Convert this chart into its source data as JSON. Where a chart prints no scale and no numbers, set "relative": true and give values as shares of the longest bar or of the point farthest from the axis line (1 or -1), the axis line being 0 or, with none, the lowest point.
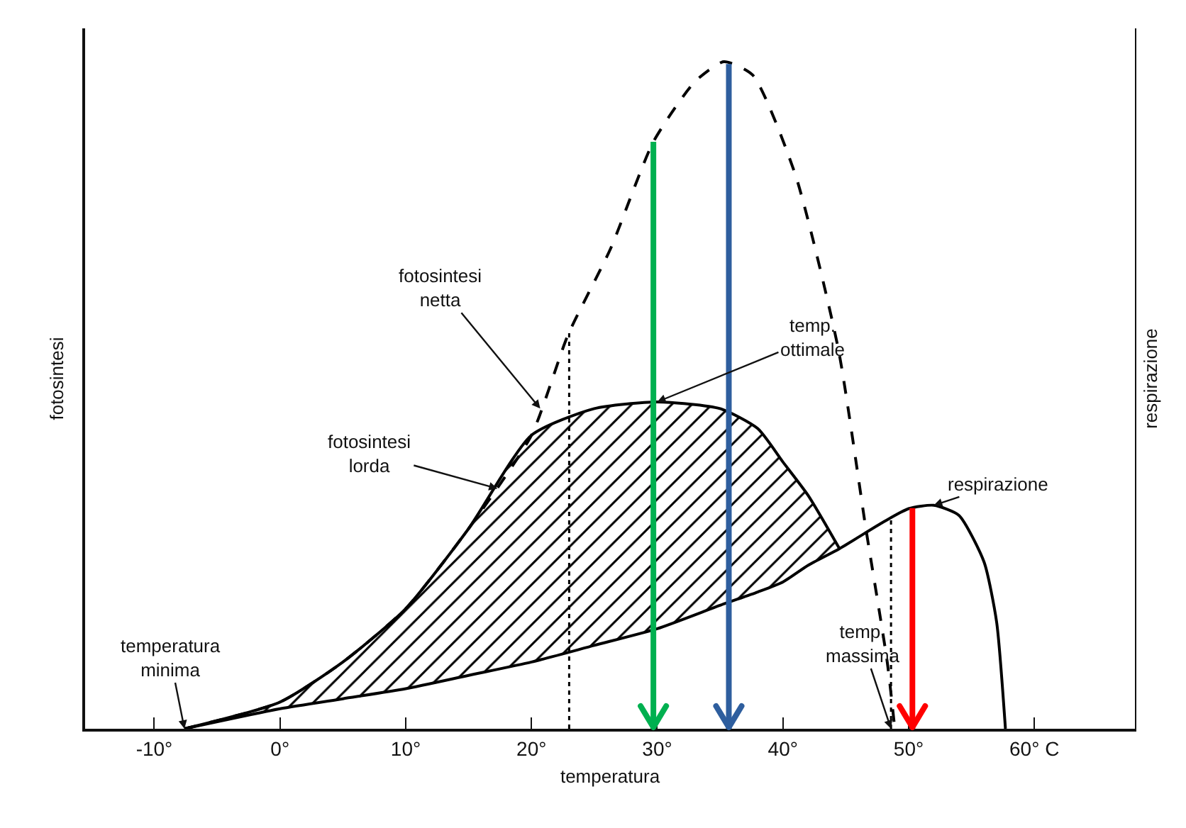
{
  "chart_data": {
    "type": "line",
    "relative": true,
    "xlabel": "temperatura",
    "ylabel": "fotosintesi",
    "y2label": "respirazione",
    "xlim": [
      -15.5,
      68
    ],
    "xticks": [
      {
        "value": -10,
        "label": "-10°"
      },
      {
        "value": 0,
        "label": "0°"
      },
      {
        "value": 10,
        "label": "10°"
      },
      {
        "value": 20,
        "label": "20°"
      },
      {
        "value": 30,
        "label": "30°"
      },
      {
        "value": 40,
        "label": "40°"
      },
      {
        "value": 50,
        "label": "50°"
      },
      {
        "value": 60,
        "label": "60° C"
      }
    ],
    "series": [
      {
        "color": "#000000",
        "line_style": "solid",
        "x": [
          -7.6,
          0,
          5,
          10,
          15,
          20,
          25,
          30,
          35,
          38,
          40,
          42,
          44.5,
          48,
          50,
          52,
          54,
          56,
          57,
          57.7
        ],
        "values": [
          0,
          0.03,
          0.045,
          0.06,
          0.08,
          0.1,
          0.125,
          0.15,
          0.185,
          0.205,
          0.22,
          0.245,
          0.27,
          0.31,
          0.33,
          0.335,
          0.32,
          0.25,
          0.16,
          0
        ]
      },
      {
        "type": "area",
        "color": "#000000",
        "line_style": "solid",
        "x": [
          -7.6,
          0,
          5,
          10,
          15,
          20,
          25,
          30,
          35,
          38,
          40,
          42,
          44.5
        ],
        "values": [
          0,
          0.04,
          0.1,
          0.18,
          0.3,
          0.44,
          0.48,
          0.49,
          0.48,
          0.45,
          0.4,
          0.35,
          0.27
        ]
      },
      {
        "color": "#000000",
        "line_style": "dashed",
        "x": [
          -7.6,
          0,
          5,
          10,
          15,
          20,
          22.9,
          26.3,
          29.7,
          33,
          35.3,
          37.6,
          41,
          44.4,
          46.6,
          48.3,
          48.9
        ],
        "values": [
          0,
          0.04,
          0.1,
          0.18,
          0.3,
          0.44,
          0.59,
          0.72,
          0.88,
          0.97,
          1,
          0.98,
          0.83,
          0.57,
          0.3,
          0.1,
          0
        ]
      }
    ],
    "ref_lines": [
      {
        "axis": "x",
        "value": 23,
        "color": "#000000",
        "line_style": "dotted"
      },
      {
        "axis": "x",
        "value": 48.6,
        "color": "#000000",
        "line_style": "dotted"
      },
      {
        "axis": "x",
        "value": 29.7,
        "color": "#00b050",
        "line_style": "solid"
      },
      {
        "axis": "x",
        "value": 35.7,
        "color": "#2e5e9e",
        "line_style": "solid"
      },
      {
        "axis": "x",
        "value": 50.3,
        "color": "#ff0000",
        "line_style": "solid"
      }
    ],
    "annotations": [
      {
        "text": "temperatura\nminima",
        "x": -7.6,
        "y": 0
      },
      {
        "text": "fotosintesi\nlorda",
        "x": 17.3,
        "y": 0.36
      },
      {
        "text": "fotosintesi\nnetta",
        "x": 20.7,
        "y": 0.48
      },
      {
        "text": "temp.\nottimale",
        "x": 30,
        "y": 0.49
      },
      {
        "text": "temp.\nmassima",
        "x": 48.6,
        "y": 0
      },
      {
        "text": "respirazione",
        "x": 52,
        "y": 0.335
      }
    ]
  }
}
